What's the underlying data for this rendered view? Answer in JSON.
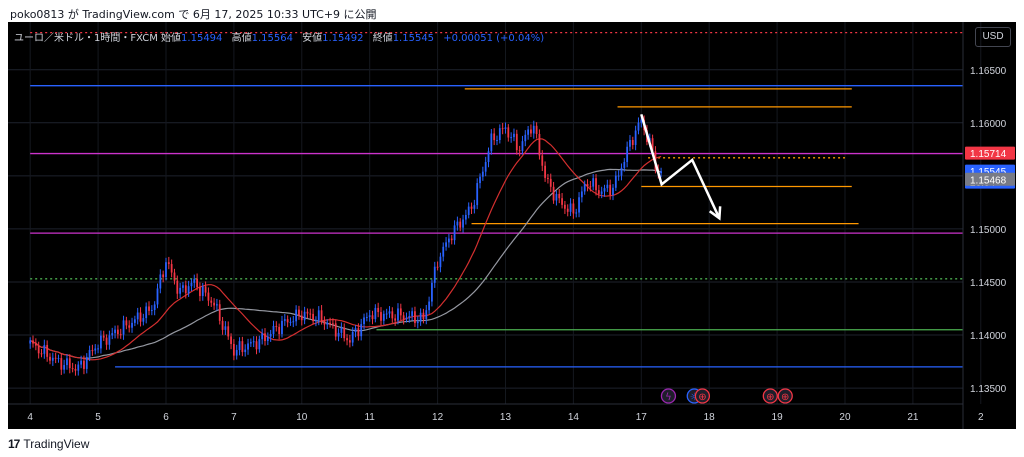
{
  "caption": "poko0813 が TradingView.com で 6月 17, 2025 10:33 UTC+9 に公開",
  "legend": {
    "symbol": "ユーロ／米ドル・1時間・FXCM",
    "open_label": "始値",
    "open": "1.15494",
    "high_label": "高値",
    "high": "1.15564",
    "low_label": "安値",
    "low": "1.15492",
    "close_label": "終値",
    "close": "1.15545",
    "change": "+0.00051 (+0.04%)"
  },
  "currency_button": "USD",
  "footer": {
    "brand": "TradingView",
    "logo": "17"
  },
  "chart_data": {
    "type": "candlestick",
    "symbol": "EURUSD",
    "timeframe": "1h",
    "ylim": [
      1.1335,
      1.1695
    ],
    "y_ticks": [
      "1.16500",
      "1.16000",
      "1.15500",
      "1.15000",
      "1.14500",
      "1.14000",
      "1.13500"
    ],
    "x_ticks": [
      "4",
      "5",
      "6",
      "7",
      "10",
      "11",
      "12",
      "13",
      "14",
      "17",
      "18",
      "19",
      "20",
      "21",
      "2"
    ],
    "x_tick_days": [
      0,
      1,
      2,
      3,
      4,
      5,
      6,
      7,
      8,
      9,
      10,
      11,
      12,
      13,
      14
    ],
    "price_labels": [
      {
        "value": "1.15714",
        "kind": "level",
        "color": "#f23645"
      },
      {
        "value": "1.15545",
        "kind": "last",
        "countdown": "26:04",
        "color": "#2962ff"
      },
      {
        "value": "1.15468",
        "kind": "ma",
        "color": "#787b86"
      }
    ],
    "anchor_points": [
      {
        "t": 0.0,
        "p": 1.1392
      },
      {
        "t": 0.4,
        "p": 1.1375
      },
      {
        "t": 0.7,
        "p": 1.1368
      },
      {
        "t": 1.0,
        "p": 1.1392
      },
      {
        "t": 1.4,
        "p": 1.1408
      },
      {
        "t": 1.8,
        "p": 1.1425
      },
      {
        "t": 2.0,
        "p": 1.147
      },
      {
        "t": 2.2,
        "p": 1.144
      },
      {
        "t": 2.4,
        "p": 1.145
      },
      {
        "t": 2.7,
        "p": 1.143
      },
      {
        "t": 3.0,
        "p": 1.1385
      },
      {
        "t": 3.4,
        "p": 1.1395
      },
      {
        "t": 3.7,
        "p": 1.141
      },
      {
        "t": 4.0,
        "p": 1.142
      },
      {
        "t": 4.3,
        "p": 1.1415
      },
      {
        "t": 4.5,
        "p": 1.1405
      },
      {
        "t": 4.7,
        "p": 1.1395
      },
      {
        "t": 5.0,
        "p": 1.142
      },
      {
        "t": 5.5,
        "p": 1.1418
      },
      {
        "t": 5.8,
        "p": 1.1415
      },
      {
        "t": 6.0,
        "p": 1.147
      },
      {
        "t": 6.2,
        "p": 1.1495
      },
      {
        "t": 6.5,
        "p": 1.152
      },
      {
        "t": 6.8,
        "p": 1.1585
      },
      {
        "t": 7.0,
        "p": 1.1595
      },
      {
        "t": 7.2,
        "p": 1.1575
      },
      {
        "t": 7.4,
        "p": 1.16
      },
      {
        "t": 7.6,
        "p": 1.1545
      },
      {
        "t": 7.8,
        "p": 1.1525
      },
      {
        "t": 8.0,
        "p": 1.1515
      },
      {
        "t": 8.2,
        "p": 1.1545
      },
      {
        "t": 8.4,
        "p": 1.1535
      },
      {
        "t": 8.6,
        "p": 1.154
      },
      {
        "t": 8.8,
        "p": 1.1575
      },
      {
        "t": 8.9,
        "p": 1.159
      },
      {
        "t": 9.0,
        "p": 1.1602
      },
      {
        "t": 9.15,
        "p": 1.1575
      },
      {
        "t": 9.25,
        "p": 1.1552
      },
      {
        "t": 9.33,
        "p": 1.15545
      }
    ],
    "horizontal_lines": [
      {
        "p": 1.1685,
        "color": "#f23645",
        "style": "dotted",
        "from": 0,
        "to": 14.4
      },
      {
        "p": 1.1635,
        "color": "#2962ff",
        "style": "solid",
        "from": 0,
        "to": 14.4
      },
      {
        "p": 1.1571,
        "color": "#cc33cc",
        "style": "solid",
        "from": 0,
        "to": 14.4
      },
      {
        "p": 1.1496,
        "color": "#cc33cc",
        "style": "solid",
        "from": 0,
        "to": 14.4
      },
      {
        "p": 1.1453,
        "color": "#4caf50",
        "style": "dotted",
        "from": 0,
        "to": 14.4
      },
      {
        "p": 1.1405,
        "color": "#4caf50",
        "style": "solid",
        "from": 5.1,
        "to": 14.4
      },
      {
        "p": 1.137,
        "color": "#2962ff",
        "style": "solid",
        "from": 1.25,
        "to": 14.4
      },
      {
        "p": 1.1632,
        "color": "#ff9800",
        "style": "solid",
        "from": 6.4,
        "to": 12.1
      },
      {
        "p": 1.1615,
        "color": "#ff9800",
        "style": "solid",
        "from": 8.65,
        "to": 12.1
      },
      {
        "p": 1.1567,
        "color": "#ff9800",
        "style": "dotted",
        "from": 9.1,
        "to": 12.0
      },
      {
        "p": 1.154,
        "color": "#ff9800",
        "style": "solid",
        "from": 9.0,
        "to": 12.1
      },
      {
        "p": 1.1505,
        "color": "#ff9800",
        "style": "solid",
        "from": 6.5,
        "to": 12.2
      }
    ],
    "projection": [
      {
        "t": 9.0,
        "p": 1.1608
      },
      {
        "t": 9.3,
        "p": 1.1542
      },
      {
        "t": 9.75,
        "p": 1.1565
      },
      {
        "t": 10.15,
        "p": 1.151
      }
    ],
    "event_icons": [
      {
        "t": 9.4,
        "glyph": "ϟ",
        "color": "#9c27b0"
      },
      {
        "t": 9.78,
        "glyph": "☼",
        "color": "#2962ff"
      },
      {
        "t": 9.9,
        "glyph": "⊕",
        "color": "#f23645"
      },
      {
        "t": 10.9,
        "glyph": "⊕",
        "color": "#f23645"
      },
      {
        "t": 11.12,
        "glyph": "⊕",
        "color": "#f23645"
      }
    ]
  }
}
